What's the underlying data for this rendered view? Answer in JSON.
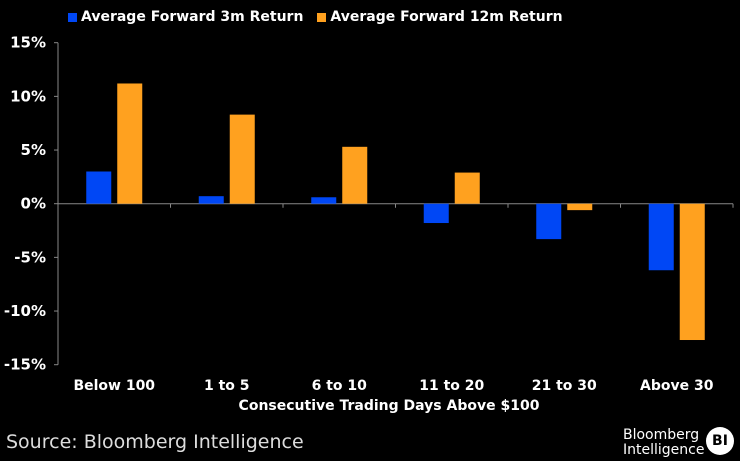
{
  "chart_data": {
    "type": "bar",
    "title": "",
    "xlabel": "Consecutive Trading Days Above $100",
    "ylabel": "",
    "ylim": [
      -15,
      15
    ],
    "yticks": [
      "15%",
      "10%",
      "5%",
      "0%",
      "-5%",
      "-10%",
      "-15%"
    ],
    "ytick_values": [
      15,
      10,
      5,
      0,
      -5,
      -10,
      -15
    ],
    "categories": [
      "Below 100",
      "1 to 5",
      "6 to 10",
      "11 to 20",
      "21 to 30",
      "Above 30"
    ],
    "series": [
      {
        "name": "Average Forward 3m Return",
        "color": "#0047f5",
        "values": [
          3.0,
          0.7,
          0.6,
          -1.8,
          -3.3,
          -6.2
        ]
      },
      {
        "name": "Average Forward 12m Return",
        "color": "#ffa11f",
        "values": [
          11.2,
          8.3,
          5.3,
          2.9,
          -0.6,
          -12.7
        ]
      }
    ],
    "legend": "top-left",
    "grid": false
  },
  "source": "Source: Bloomberg Intelligence",
  "logo": {
    "line1": "Bloomberg",
    "line2": "Intelligence",
    "badge": "BI"
  }
}
